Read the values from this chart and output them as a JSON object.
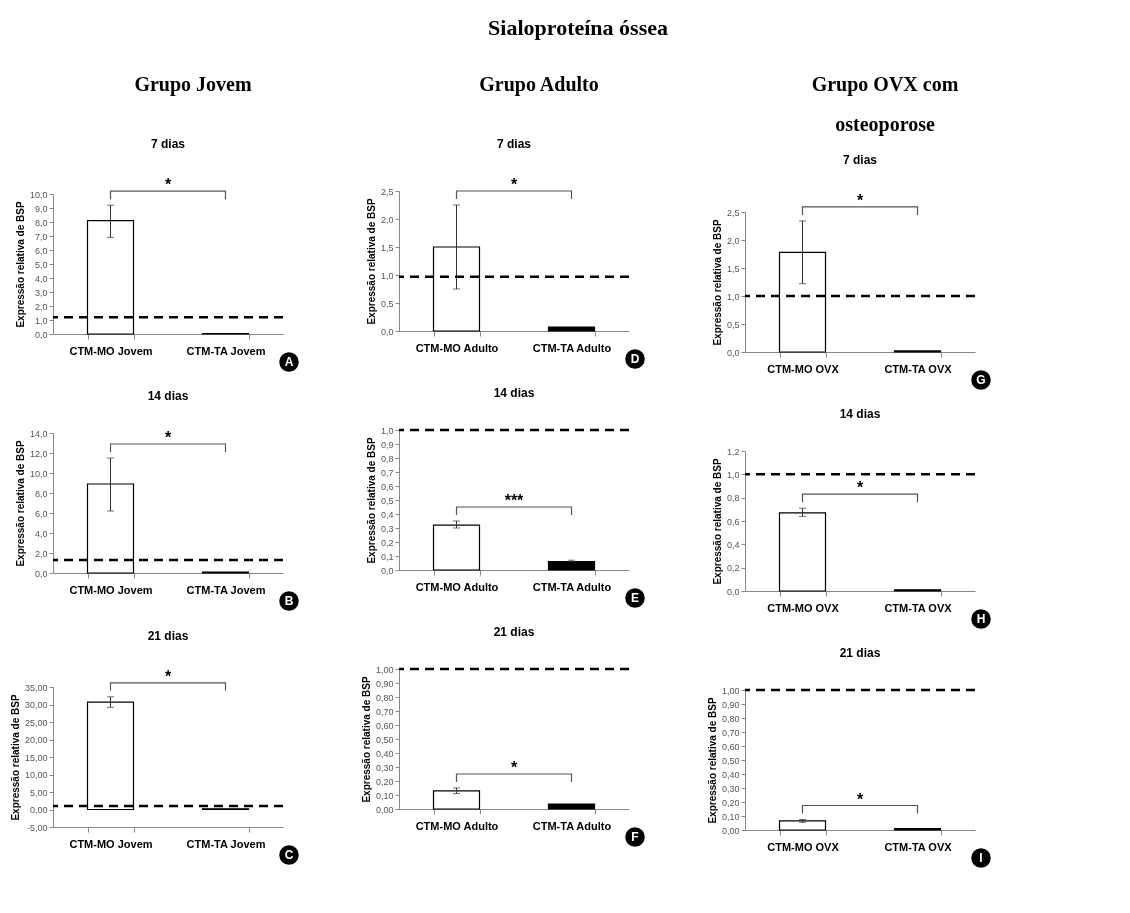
{
  "chart_data": [
    {
      "type": "other",
      "title": "Sialoproteína óssea"
    },
    {
      "type": "bar",
      "subtitle": "Grupo Jovem",
      "title": "7 dias",
      "ylabel": "Expressão relativa de BSP",
      "categories": [
        "CTM-MO Jovem",
        "CTM-TA Jovem"
      ],
      "values": [
        8.1,
        0.02
      ],
      "colors": [
        "#ffffff",
        "#000000"
      ],
      "errors": [
        [
          6.9,
          9.2
        ],
        null
      ],
      "ylim": [
        0,
        10
      ],
      "yticks": [
        {
          "value": 0,
          "label": "0,0"
        },
        {
          "value": 1,
          "label": "1,0"
        },
        {
          "value": 2,
          "label": "2,0"
        },
        {
          "value": 3,
          "label": "3,0"
        },
        {
          "value": 4,
          "label": "4,0"
        },
        {
          "value": 5,
          "label": "5,0"
        },
        {
          "value": 6,
          "label": "6,0"
        },
        {
          "value": 7,
          "label": "7,0"
        },
        {
          "value": 8,
          "label": "8,0"
        },
        {
          "value": 9,
          "label": "9,0"
        },
        {
          "value": 10,
          "label": "10,0"
        }
      ],
      "ref_lines": [
        {
          "axis": "y",
          "value": 1.2,
          "line_style": "dashed"
        }
      ],
      "annotations": [
        "*",
        "A"
      ]
    },
    {
      "type": "bar",
      "subtitle": "Grupo Adulto",
      "title": "7 dias",
      "ylabel": "Expressão relativa de BSP",
      "categories": [
        "CTM-MO Adulto",
        "CTM-TA Adulto"
      ],
      "values": [
        1.5,
        0.07
      ],
      "colors": [
        "#ffffff",
        "#000000"
      ],
      "errors": [
        [
          0.75,
          2.25
        ],
        null
      ],
      "ylim": [
        0,
        2.5
      ],
      "yticks": [
        {
          "value": 0,
          "label": "0,0"
        },
        {
          "value": 0.5,
          "label": "0,5"
        },
        {
          "value": 1,
          "label": "1,0"
        },
        {
          "value": 1.5,
          "label": "1,5"
        },
        {
          "value": 2,
          "label": "2,0"
        },
        {
          "value": 2.5,
          "label": "2,5"
        }
      ],
      "ref_lines": [
        {
          "axis": "y",
          "value": 0.97,
          "line_style": "dashed"
        }
      ],
      "annotations": [
        "*",
        "D"
      ]
    },
    {
      "type": "bar",
      "subtitle": "Grupo OVX com osteoporose",
      "title": "7 dias",
      "ylabel": "Expressão relativa de BSP",
      "categories": [
        "CTM-MO OVX",
        "CTM-TA OVX"
      ],
      "values": [
        1.78,
        0.02
      ],
      "colors": [
        "#ffffff",
        "#000000"
      ],
      "errors": [
        [
          1.22,
          2.34
        ],
        null
      ],
      "ylim": [
        0,
        2.5
      ],
      "yticks": [
        {
          "value": 0,
          "label": "0,0"
        },
        {
          "value": 0.5,
          "label": "0,5"
        },
        {
          "value": 1,
          "label": "1,0"
        },
        {
          "value": 1.5,
          "label": "1,5"
        },
        {
          "value": 2,
          "label": "2,0"
        },
        {
          "value": 2.5,
          "label": "2,5"
        }
      ],
      "ref_lines": [
        {
          "axis": "y",
          "value": 1.0,
          "line_style": "dashed"
        }
      ],
      "annotations": [
        "*",
        "G"
      ]
    },
    {
      "type": "bar",
      "title": "14 dias",
      "ylabel": "Expressão relativa de BSP",
      "categories": [
        "CTM-MO Jovem",
        "CTM-TA Jovem"
      ],
      "values": [
        8.9,
        0.1
      ],
      "colors": [
        "#ffffff",
        "#000000"
      ],
      "errors": [
        [
          6.2,
          11.5
        ],
        null
      ],
      "ylim": [
        0,
        14
      ],
      "yticks": [
        {
          "value": 0,
          "label": "0,0"
        },
        {
          "value": 2,
          "label": "2,0"
        },
        {
          "value": 4,
          "label": "4,0"
        },
        {
          "value": 6,
          "label": "6,0"
        },
        {
          "value": 8,
          "label": "8,0"
        },
        {
          "value": 10,
          "label": "10,0"
        },
        {
          "value": 12,
          "label": "12,0"
        },
        {
          "value": 14,
          "label": "14,0"
        }
      ],
      "ref_lines": [
        {
          "axis": "y",
          "value": 1.3,
          "line_style": "dashed"
        }
      ],
      "annotations": [
        "*",
        "B"
      ]
    },
    {
      "type": "bar",
      "title": "14 dias",
      "ylabel": "Expressão relativa de BSP",
      "categories": [
        "CTM-MO Adulto",
        "CTM-TA Adulto"
      ],
      "values": [
        0.32,
        0.06
      ],
      "colors": [
        "#ffffff",
        "#000000"
      ],
      "errors": [
        [
          0.3,
          0.35
        ],
        [
          0.06,
          0.07
        ]
      ],
      "ylim": [
        0,
        1
      ],
      "yticks": [
        {
          "value": 0,
          "label": "0,0"
        },
        {
          "value": 0.1,
          "label": "0,1"
        },
        {
          "value": 0.2,
          "label": "0,2"
        },
        {
          "value": 0.3,
          "label": "0,3"
        },
        {
          "value": 0.4,
          "label": "0,4"
        },
        {
          "value": 0.5,
          "label": "0,5"
        },
        {
          "value": 0.6,
          "label": "0,6"
        },
        {
          "value": 0.7,
          "label": "0,7"
        },
        {
          "value": 0.8,
          "label": "0,8"
        },
        {
          "value": 0.9,
          "label": "0,9"
        },
        {
          "value": 1,
          "label": "1,0"
        }
      ],
      "ref_lines": [
        {
          "axis": "y",
          "value": 1.0,
          "line_style": "dashed"
        }
      ],
      "annotations": [
        "***",
        "E"
      ]
    },
    {
      "type": "bar",
      "title": "14 dias",
      "ylabel": "Expressão relativa de BSP",
      "categories": [
        "CTM-MO OVX",
        "CTM-TA OVX"
      ],
      "values": [
        0.67,
        0.01
      ],
      "colors": [
        "#ffffff",
        "#000000"
      ],
      "errors": [
        [
          0.64,
          0.71
        ],
        null
      ],
      "ylim": [
        0,
        1.2
      ],
      "yticks": [
        {
          "value": 0,
          "label": "0,0"
        },
        {
          "value": 0.2,
          "label": "0,2"
        },
        {
          "value": 0.4,
          "label": "0,4"
        },
        {
          "value": 0.6,
          "label": "0,6"
        },
        {
          "value": 0.8,
          "label": "0,8"
        },
        {
          "value": 1,
          "label": "1,0"
        },
        {
          "value": 1.2,
          "label": "1,2"
        }
      ],
      "ref_lines": [
        {
          "axis": "y",
          "value": 1.0,
          "line_style": "dashed"
        }
      ],
      "annotations": [
        "*",
        "H"
      ]
    },
    {
      "type": "bar",
      "title": "21 dias",
      "ylabel": "Expressão relativa de BSP",
      "categories": [
        "CTM-MO Jovem",
        "CTM-TA Jovem"
      ],
      "values": [
        30.7,
        0.2
      ],
      "colors": [
        "#ffffff",
        "#000000"
      ],
      "errors": [
        [
          29.2,
          32.2
        ],
        null
      ],
      "ylim": [
        -5,
        35
      ],
      "yticks": [
        {
          "value": -5,
          "label": "-5,00"
        },
        {
          "value": 0,
          "label": "0,00"
        },
        {
          "value": 5,
          "label": "5,00"
        },
        {
          "value": 10,
          "label": "10,00"
        },
        {
          "value": 15,
          "label": "15,00"
        },
        {
          "value": 20,
          "label": "20,00"
        },
        {
          "value": 25,
          "label": "25,00"
        },
        {
          "value": 30,
          "label": "30,00"
        },
        {
          "value": 35,
          "label": "35,00"
        }
      ],
      "ref_lines": [
        {
          "axis": "y",
          "value": 1.0,
          "line_style": "dashed"
        }
      ],
      "annotations": [
        "*",
        "C"
      ]
    },
    {
      "type": "bar",
      "title": "21 dias",
      "ylabel": "Expressão relativa de BSP",
      "categories": [
        "CTM-MO Adulto",
        "CTM-TA Adulto"
      ],
      "values": [
        0.13,
        0.035
      ],
      "colors": [
        "#ffffff",
        "#000000"
      ],
      "errors": [
        [
          0.11,
          0.15
        ],
        null
      ],
      "ylim": [
        0,
        1
      ],
      "yticks": [
        {
          "value": 0,
          "label": "0,00"
        },
        {
          "value": 0.1,
          "label": "0,10"
        },
        {
          "value": 0.2,
          "label": "0,20"
        },
        {
          "value": 0.3,
          "label": "0,30"
        },
        {
          "value": 0.4,
          "label": "0,40"
        },
        {
          "value": 0.5,
          "label": "0,50"
        },
        {
          "value": 0.6,
          "label": "0,60"
        },
        {
          "value": 0.7,
          "label": "0,70"
        },
        {
          "value": 0.8,
          "label": "0,80"
        },
        {
          "value": 0.9,
          "label": "0,90"
        },
        {
          "value": 1,
          "label": "1,00"
        }
      ],
      "ref_lines": [
        {
          "axis": "y",
          "value": 1.0,
          "line_style": "dashed"
        }
      ],
      "annotations": [
        "*",
        "F"
      ]
    },
    {
      "type": "bar",
      "title": "21 dias",
      "ylabel": "Expressão relativa de BSP",
      "categories": [
        "CTM-MO OVX",
        "CTM-TA OVX"
      ],
      "values": [
        0.065,
        0.01
      ],
      "colors": [
        "#ffffff",
        "#000000"
      ],
      "errors": [
        [
          0.055,
          0.075
        ],
        null
      ],
      "ylim": [
        0,
        1
      ],
      "yticks": [
        {
          "value": 0,
          "label": "0,00"
        },
        {
          "value": 0.1,
          "label": "0,10"
        },
        {
          "value": 0.2,
          "label": "0,20"
        },
        {
          "value": 0.3,
          "label": "0,30"
        },
        {
          "value": 0.4,
          "label": "0,40"
        },
        {
          "value": 0.5,
          "label": "0,50"
        },
        {
          "value": 0.6,
          "label": "0,60"
        },
        {
          "value": 0.7,
          "label": "0,70"
        },
        {
          "value": 0.8,
          "label": "0,80"
        },
        {
          "value": 0.9,
          "label": "0,90"
        },
        {
          "value": 1,
          "label": "1,00"
        }
      ],
      "ref_lines": [
        {
          "axis": "y",
          "value": 1.0,
          "line_style": "dashed"
        }
      ],
      "annotations": [
        "*",
        "I"
      ]
    }
  ]
}
